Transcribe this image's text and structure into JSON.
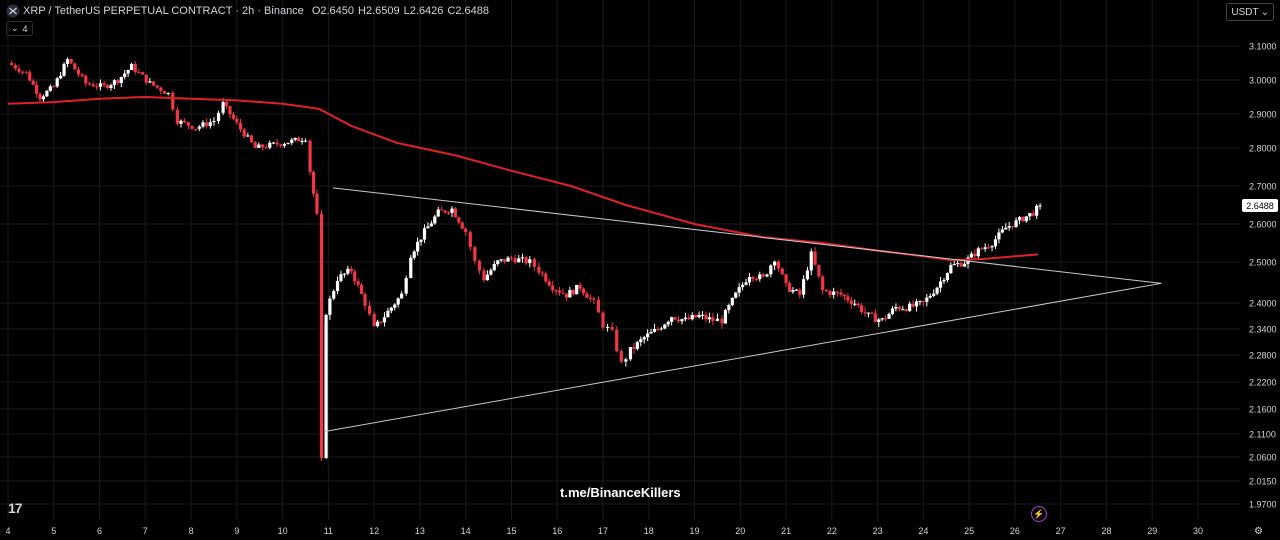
{
  "header": {
    "symbol": "XRP / TetherUS PERPETUAL CONTRACT · 2h · Binance",
    "o_label": "O",
    "o_value": "2.6450",
    "h_label": "H",
    "h_value": "2.6509",
    "l_label": "L",
    "l_value": "2.6426",
    "c_label": "C",
    "c_value": "2.6488",
    "indicator_toggle": "4"
  },
  "currency_button": "USDT",
  "watermark": "t.me/BinanceKillers",
  "logo_text": "17",
  "colors": {
    "up": "#ffffff",
    "down": "#f23645",
    "ma": "#e0202a",
    "trendline": "#c8c8c8",
    "grid": "#1a1a1a",
    "current_price_bg": "#ffffff"
  },
  "chart_data": {
    "type": "candlestick",
    "timeframe": "2h",
    "y_axis_labels": [
      "3.1000",
      "3.0000",
      "2.9000",
      "2.8000",
      "2.7000",
      "2.6000",
      "2.5000",
      "2.4000",
      "2.3400",
      "2.2800",
      "2.2200",
      "2.1600",
      "2.1100",
      "2.0600",
      "2.0150",
      "1.9700"
    ],
    "x_axis_labels": [
      "4",
      "5",
      "6",
      "7",
      "8",
      "9",
      "10",
      "11",
      "12",
      "13",
      "14",
      "15",
      "16",
      "17",
      "18",
      "19",
      "20",
      "21",
      "22",
      "23",
      "24",
      "25",
      "26",
      "27",
      "28",
      "29",
      "30"
    ],
    "current_price": "2.6488",
    "price_path": [
      [
        4.0,
        3.05
      ],
      [
        4.4,
        3.02
      ],
      [
        4.7,
        2.95
      ],
      [
        5.0,
        2.98
      ],
      [
        5.3,
        3.06
      ],
      [
        5.7,
        2.99
      ],
      [
        6.1,
        2.98
      ],
      [
        6.4,
        3.0
      ],
      [
        6.7,
        3.04
      ],
      [
        7.1,
        2.99
      ],
      [
        7.5,
        2.96
      ],
      [
        7.7,
        2.88
      ],
      [
        8.1,
        2.86
      ],
      [
        8.5,
        2.88
      ],
      [
        8.7,
        2.93
      ],
      [
        9.0,
        2.87
      ],
      [
        9.4,
        2.8
      ],
      [
        9.8,
        2.81
      ],
      [
        10.2,
        2.82
      ],
      [
        10.5,
        2.83
      ],
      [
        10.6,
        2.74
      ],
      [
        10.75,
        2.62
      ],
      [
        10.85,
        2.05
      ],
      [
        10.95,
        2.38
      ],
      [
        11.2,
        2.46
      ],
      [
        11.5,
        2.48
      ],
      [
        11.8,
        2.4
      ],
      [
        12.0,
        2.34
      ],
      [
        12.3,
        2.38
      ],
      [
        12.6,
        2.42
      ],
      [
        12.8,
        2.52
      ],
      [
        13.1,
        2.58
      ],
      [
        13.4,
        2.63
      ],
      [
        13.7,
        2.64
      ],
      [
        14.0,
        2.58
      ],
      [
        14.2,
        2.5
      ],
      [
        14.4,
        2.46
      ],
      [
        14.7,
        2.5
      ],
      [
        15.0,
        2.51
      ],
      [
        15.4,
        2.5
      ],
      [
        15.6,
        2.48
      ],
      [
        15.9,
        2.44
      ],
      [
        16.2,
        2.42
      ],
      [
        16.5,
        2.44
      ],
      [
        16.8,
        2.4
      ],
      [
        17.0,
        2.35
      ],
      [
        17.2,
        2.33
      ],
      [
        17.4,
        2.26
      ],
      [
        17.6,
        2.29
      ],
      [
        17.9,
        2.32
      ],
      [
        18.2,
        2.34
      ],
      [
        18.5,
        2.37
      ],
      [
        18.8,
        2.36
      ],
      [
        19.1,
        2.37
      ],
      [
        19.4,
        2.36
      ],
      [
        19.6,
        2.36
      ],
      [
        19.9,
        2.42
      ],
      [
        20.2,
        2.47
      ],
      [
        20.5,
        2.46
      ],
      [
        20.75,
        2.51
      ],
      [
        21.0,
        2.44
      ],
      [
        21.3,
        2.42
      ],
      [
        21.55,
        2.52
      ],
      [
        21.8,
        2.43
      ],
      [
        22.2,
        2.42
      ],
      [
        22.5,
        2.4
      ],
      [
        22.8,
        2.37
      ],
      [
        23.1,
        2.36
      ],
      [
        23.4,
        2.39
      ],
      [
        23.7,
        2.39
      ],
      [
        24.0,
        2.4
      ],
      [
        24.3,
        2.44
      ],
      [
        24.6,
        2.49
      ],
      [
        24.9,
        2.5
      ],
      [
        25.2,
        2.53
      ],
      [
        25.5,
        2.55
      ],
      [
        25.8,
        2.59
      ],
      [
        26.1,
        2.61
      ],
      [
        26.4,
        2.63
      ],
      [
        26.55,
        2.6488
      ]
    ],
    "moving_average": [
      [
        4.0,
        2.93
      ],
      [
        5.0,
        2.935
      ],
      [
        6.0,
        2.945
      ],
      [
        7.0,
        2.95
      ],
      [
        8.0,
        2.945
      ],
      [
        9.0,
        2.94
      ],
      [
        10.0,
        2.93
      ],
      [
        10.8,
        2.915
      ],
      [
        11.5,
        2.865
      ],
      [
        12.5,
        2.815
      ],
      [
        13.8,
        2.78
      ],
      [
        15.0,
        2.74
      ],
      [
        16.3,
        2.7
      ],
      [
        17.5,
        2.65
      ],
      [
        19.0,
        2.6
      ],
      [
        20.5,
        2.565
      ],
      [
        21.8,
        2.55
      ],
      [
        23.0,
        2.53
      ],
      [
        24.0,
        2.515
      ],
      [
        24.6,
        2.505
      ],
      [
        25.3,
        2.508
      ],
      [
        26.0,
        2.515
      ],
      [
        26.5,
        2.52
      ]
    ],
    "trendlines": [
      {
        "from": [
          11.1,
          2.695
        ],
        "to": [
          29.2,
          2.448
        ]
      },
      {
        "from": [
          10.92,
          2.115
        ],
        "to": [
          29.2,
          2.448
        ]
      },
      {
        "from": [
          10.92,
          2.115
        ],
        "to": [
          10.92,
          2.35
        ]
      }
    ]
  }
}
